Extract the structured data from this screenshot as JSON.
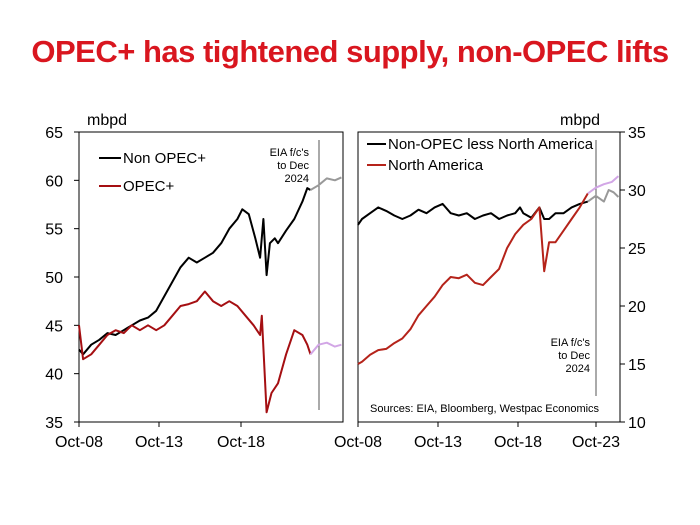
{
  "title": "OPEC+ has tightened supply, non-OPEC lifts",
  "colors": {
    "title": "#d9161f",
    "non_opec_plus": "#000000",
    "opec_plus": "#a50f12",
    "non_opec_less_na": "#000000",
    "north_america": "#b5231a",
    "forecast_gray": "#999999",
    "forecast_purple": "#d2a6e6"
  },
  "chart_data": [
    {
      "type": "line",
      "unit": "mbpd",
      "ylim": [
        35,
        65
      ],
      "yticks": [
        "65",
        "60",
        "55",
        "50",
        "45",
        "40",
        "35"
      ],
      "xticks": [
        "Oct-08",
        "Oct-13",
        "Oct-18"
      ],
      "xrange": [
        "Oct-08",
        "Dec-24"
      ],
      "legend_position": "top-left",
      "annotation": "EIA f/c's to Dec 2024",
      "annotation_lines": [
        "EIA f/c's",
        "to Dec",
        "2024"
      ],
      "forecast_start": "Jan-23",
      "series": [
        {
          "name": "Non OPEC+",
          "color": "#000000",
          "points": [
            [
              2008.75,
              42.5
            ],
            [
              2009.0,
              42.0
            ],
            [
              2009.5,
              43.0
            ],
            [
              2010.0,
              43.5
            ],
            [
              2010.5,
              44.2
            ],
            [
              2011.0,
              44.0
            ],
            [
              2011.5,
              44.5
            ],
            [
              2012.0,
              45.0
            ],
            [
              2012.5,
              45.5
            ],
            [
              2013.0,
              45.8
            ],
            [
              2013.5,
              46.5
            ],
            [
              2014.0,
              48.0
            ],
            [
              2014.5,
              49.5
            ],
            [
              2015.0,
              51.0
            ],
            [
              2015.5,
              52.0
            ],
            [
              2016.0,
              51.5
            ],
            [
              2016.5,
              52.0
            ],
            [
              2017.0,
              52.5
            ],
            [
              2017.5,
              53.5
            ],
            [
              2018.0,
              55.0
            ],
            [
              2018.5,
              56.0
            ],
            [
              2018.8,
              57.0
            ],
            [
              2019.2,
              56.5
            ],
            [
              2019.6,
              54.0
            ],
            [
              2019.9,
              52.0
            ],
            [
              2020.1,
              56.0
            ],
            [
              2020.3,
              50.2
            ],
            [
              2020.5,
              53.5
            ],
            [
              2020.8,
              54.0
            ],
            [
              2021.0,
              53.5
            ],
            [
              2021.5,
              54.8
            ],
            [
              2022.0,
              56.0
            ],
            [
              2022.5,
              57.8
            ],
            [
              2022.8,
              59.2
            ],
            [
              2023.0,
              59.0
            ]
          ],
          "forecast": [
            [
              2023.0,
              59.0
            ],
            [
              2023.5,
              59.5
            ],
            [
              2024.0,
              60.2
            ],
            [
              2024.5,
              60.0
            ],
            [
              2024.9,
              60.3
            ]
          ]
        },
        {
          "name": "OPEC+",
          "color": "#a50f12",
          "points": [
            [
              2008.75,
              45.0
            ],
            [
              2009.0,
              41.5
            ],
            [
              2009.5,
              42.0
            ],
            [
              2010.0,
              43.0
            ],
            [
              2010.5,
              44.0
            ],
            [
              2011.0,
              44.5
            ],
            [
              2011.5,
              44.2
            ],
            [
              2012.0,
              45.0
            ],
            [
              2012.5,
              44.5
            ],
            [
              2013.0,
              45.0
            ],
            [
              2013.5,
              44.5
            ],
            [
              2014.0,
              45.0
            ],
            [
              2014.5,
              46.0
            ],
            [
              2015.0,
              47.0
            ],
            [
              2015.5,
              47.2
            ],
            [
              2016.0,
              47.5
            ],
            [
              2016.5,
              48.5
            ],
            [
              2017.0,
              47.5
            ],
            [
              2017.5,
              47.0
            ],
            [
              2018.0,
              47.5
            ],
            [
              2018.5,
              47.0
            ],
            [
              2019.0,
              46.0
            ],
            [
              2019.5,
              45.0
            ],
            [
              2019.9,
              44.0
            ],
            [
              2020.0,
              46.0
            ],
            [
              2020.3,
              36.0
            ],
            [
              2020.6,
              38.0
            ],
            [
              2021.0,
              39.0
            ],
            [
              2021.5,
              42.0
            ],
            [
              2022.0,
              44.5
            ],
            [
              2022.5,
              44.0
            ],
            [
              2022.8,
              43.0
            ],
            [
              2023.0,
              42.0
            ]
          ],
          "forecast": [
            [
              2023.0,
              42.0
            ],
            [
              2023.5,
              43.0
            ],
            [
              2024.0,
              43.2
            ],
            [
              2024.5,
              42.8
            ],
            [
              2024.9,
              43.0
            ]
          ]
        }
      ]
    },
    {
      "type": "line",
      "unit": "mbpd",
      "ylim": [
        10,
        35
      ],
      "yticks": [
        "35",
        "30",
        "25",
        "20",
        "15",
        "10"
      ],
      "xticks": [
        "Oct-08",
        "Oct-13",
        "Oct-18",
        "Oct-23"
      ],
      "xrange": [
        "Oct-08",
        "Dec-24"
      ],
      "legend_position": "top-left",
      "annotation": "EIA f/c's to Dec 2024",
      "annotation_lines": [
        "EIA f/c's",
        "to Dec",
        "2024"
      ],
      "source": "Sources: EIA, Bloomberg, Westpac Economics",
      "forecast_start": "Jan-23",
      "series": [
        {
          "name": "Non-OPEC less North America",
          "color": "#000000",
          "points": [
            [
              2008.75,
              27.0
            ],
            [
              2009.0,
              27.5
            ],
            [
              2009.5,
              28.0
            ],
            [
              2010.0,
              28.5
            ],
            [
              2010.5,
              28.2
            ],
            [
              2011.0,
              27.8
            ],
            [
              2011.5,
              27.5
            ],
            [
              2012.0,
              27.8
            ],
            [
              2012.5,
              28.3
            ],
            [
              2013.0,
              28.0
            ],
            [
              2013.5,
              28.5
            ],
            [
              2014.0,
              28.8
            ],
            [
              2014.5,
              28.0
            ],
            [
              2015.0,
              27.8
            ],
            [
              2015.5,
              28.0
            ],
            [
              2016.0,
              27.5
            ],
            [
              2016.5,
              27.8
            ],
            [
              2017.0,
              28.0
            ],
            [
              2017.5,
              27.5
            ],
            [
              2018.0,
              27.8
            ],
            [
              2018.5,
              28.0
            ],
            [
              2018.8,
              28.5
            ],
            [
              2019.0,
              28.0
            ],
            [
              2019.5,
              27.6
            ],
            [
              2020.0,
              28.5
            ],
            [
              2020.3,
              27.5
            ],
            [
              2020.6,
              27.5
            ],
            [
              2021.0,
              28.0
            ],
            [
              2021.5,
              28.0
            ],
            [
              2022.0,
              28.5
            ],
            [
              2022.5,
              28.8
            ],
            [
              2023.0,
              29.0
            ]
          ],
          "forecast": [
            [
              2023.0,
              29.0
            ],
            [
              2023.5,
              29.5
            ],
            [
              2024.0,
              29.0
            ],
            [
              2024.3,
              30.0
            ],
            [
              2024.6,
              29.8
            ],
            [
              2024.9,
              29.4
            ]
          ]
        },
        {
          "name": "North America",
          "color": "#b5231a",
          "points": [
            [
              2008.75,
              15.0
            ],
            [
              2009.0,
              15.2
            ],
            [
              2009.5,
              15.8
            ],
            [
              2010.0,
              16.2
            ],
            [
              2010.5,
              16.3
            ],
            [
              2011.0,
              16.8
            ],
            [
              2011.5,
              17.2
            ],
            [
              2012.0,
              18.0
            ],
            [
              2012.5,
              19.2
            ],
            [
              2013.0,
              20.0
            ],
            [
              2013.5,
              20.8
            ],
            [
              2014.0,
              21.8
            ],
            [
              2014.5,
              22.5
            ],
            [
              2015.0,
              22.4
            ],
            [
              2015.5,
              22.7
            ],
            [
              2016.0,
              22.0
            ],
            [
              2016.5,
              21.8
            ],
            [
              2017.0,
              22.5
            ],
            [
              2017.5,
              23.2
            ],
            [
              2018.0,
              25.0
            ],
            [
              2018.5,
              26.2
            ],
            [
              2019.0,
              27.0
            ],
            [
              2019.5,
              27.5
            ],
            [
              2020.0,
              28.5
            ],
            [
              2020.3,
              23.0
            ],
            [
              2020.6,
              25.5
            ],
            [
              2021.0,
              25.5
            ],
            [
              2021.5,
              26.5
            ],
            [
              2022.0,
              27.5
            ],
            [
              2022.5,
              28.5
            ],
            [
              2023.0,
              29.7
            ]
          ],
          "forecast": [
            [
              2023.0,
              29.7
            ],
            [
              2023.5,
              30.2
            ],
            [
              2024.0,
              30.5
            ],
            [
              2024.5,
              30.7
            ],
            [
              2024.9,
              31.2
            ]
          ]
        }
      ]
    }
  ]
}
